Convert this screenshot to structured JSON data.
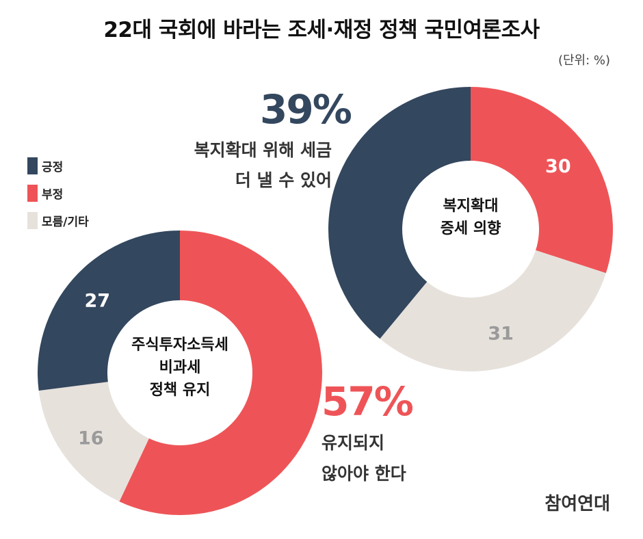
{
  "header": {
    "title": "22대 국회에 바라는 조세·재정 정책 국민여론조사",
    "unit": "(단위: %)"
  },
  "legend": [
    {
      "label": "긍정",
      "color": "#33475e"
    },
    {
      "label": "부정",
      "color": "#ee5457"
    },
    {
      "label": "모름/기타",
      "color": "#e7e1dc"
    }
  ],
  "colors": {
    "positive": "#33475e",
    "negative": "#ee5457",
    "unknown": "#e7e1dc"
  },
  "chart1": {
    "highlight": "39%",
    "caption": [
      "복지확대 위해 세금",
      "더 낼 수 있어"
    ],
    "center_lines": [
      "복지확대",
      "증세 의향"
    ]
  },
  "chart2": {
    "highlight": "57%",
    "caption": [
      "유지되지",
      "않아야 한다"
    ],
    "center_lines": [
      "주식투자소득세",
      "비과세",
      "정책 유지"
    ]
  },
  "chart_data": [
    {
      "type": "pie",
      "title": "복지확대 증세 의향",
      "categories": [
        "긍정",
        "부정",
        "모름/기타"
      ],
      "values": [
        39,
        30,
        31
      ],
      "labels_shown": [
        "",
        "30",
        "31"
      ]
    },
    {
      "type": "pie",
      "title": "주식투자소득세 비과세 정책 유지",
      "categories": [
        "긍정",
        "부정",
        "모름/기타"
      ],
      "values": [
        27,
        57,
        16
      ],
      "labels_shown": [
        "27",
        "",
        "16"
      ]
    }
  ],
  "brand": "참여연대"
}
